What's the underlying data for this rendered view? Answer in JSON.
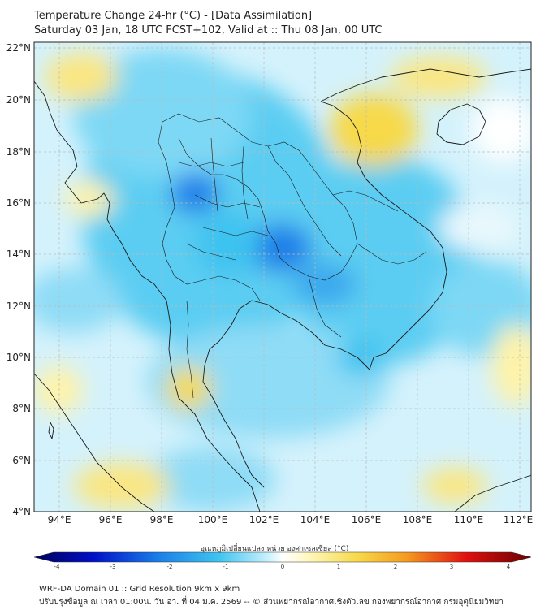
{
  "title_line1": "Temperature Change 24-hr (°C) - [Data Assimilation]",
  "title_line2": "Saturday 03 Jan, 18 UTC FCST+102, Valid at :: Thu 08 Jan, 00 UTC",
  "lat_labels": [
    "22°N",
    "20°N",
    "18°N",
    "16°N",
    "14°N",
    "12°N",
    "10°N",
    "8°N",
    "6°N",
    "4°N"
  ],
  "lon_labels": [
    "94°E",
    "96°E",
    "98°E",
    "100°E",
    "102°E",
    "104°E",
    "106°E",
    "108°E",
    "110°E",
    "112°E"
  ],
  "colorbar": {
    "label": "อุณหภูมิเปลี่ยนแปลง หน่วย องศาเซลเซียส (°C)",
    "ticks": [
      "-4",
      "-3",
      "-2",
      "-1",
      "0",
      "1",
      "2",
      "3",
      "4"
    ],
    "range": [
      -4,
      4
    ]
  },
  "footer_line1": "WRF-DA Domain 01 :: Grid Resolution 9km x 9km",
  "footer_line2": "ปรับปรุงข้อมูล ณ เวลา 01:00น. วัน อา. ที่ 04 ม.ค. 2569 -- © ส่วนพยากรณ์อากาศเชิงตัวเลข กองพยากรณ์อากาศ กรมอุตุนิยมวิทยา",
  "colors": {
    "cool_strong": "#1a7fe8",
    "cool": "#3ec3f0",
    "cool_light": "#a8e6fa",
    "neutral": "#ffffff",
    "warm_light": "#fff3a8",
    "warm": "#f7d94a",
    "border": "#1a1a1a"
  }
}
